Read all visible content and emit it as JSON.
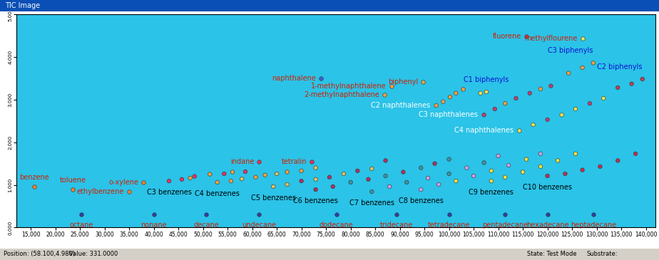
{
  "chart_data": {
    "type": "scatter",
    "title": "TIC Image",
    "annotations": [
      "Position: (58.100,4.980)",
      "Value: 331.0000",
      "State: Test Mode",
      "Substrate:"
    ],
    "xlim": [
      12100,
      142000
    ],
    "ylim": [
      0,
      5
    ],
    "xticks": [
      {
        "value": 15000,
        "label": "15,000"
      },
      {
        "value": 20000,
        "label": "20,000"
      },
      {
        "value": 25000,
        "label": "25,000"
      },
      {
        "value": 30000,
        "label": "30,000"
      },
      {
        "value": 35000,
        "label": "35,000"
      },
      {
        "value": 40000,
        "label": "40,000"
      },
      {
        "value": 45000,
        "label": "45,000"
      },
      {
        "value": 50000,
        "label": "50,000"
      },
      {
        "value": 55000,
        "label": "55,000"
      },
      {
        "value": 60000,
        "label": "60,000"
      },
      {
        "value": 65000,
        "label": "65,000"
      },
      {
        "value": 70000,
        "label": "70,000"
      },
      {
        "value": 75000,
        "label": "75,000"
      },
      {
        "value": 80000,
        "label": "80,000"
      },
      {
        "value": 85000,
        "label": "85,000"
      },
      {
        "value": 90000,
        "label": "90,000"
      },
      {
        "value": 95000,
        "label": "95,000"
      },
      {
        "value": 100000,
        "label": "100,000"
      },
      {
        "value": 105000,
        "label": "105,000"
      },
      {
        "value": 110000,
        "label": "110,000"
      },
      {
        "value": 115000,
        "label": "115,000"
      },
      {
        "value": 120000,
        "label": "120,000"
      },
      {
        "value": 125000,
        "label": "125,000"
      },
      {
        "value": 130000,
        "label": "130,000"
      },
      {
        "value": 135000,
        "label": "135,000"
      },
      {
        "value": 140000,
        "label": "140,000"
      }
    ],
    "yticks": [
      {
        "value": 0,
        "label": "0.000"
      },
      {
        "value": 1,
        "label": "1.000"
      },
      {
        "value": 2,
        "label": "2.000"
      },
      {
        "value": 3,
        "label": "3.000"
      },
      {
        "value": 4,
        "label": "4.000"
      },
      {
        "value": 5,
        "label": "5.000"
      }
    ],
    "series": [
      {
        "name": "benzene",
        "color": "#d02000",
        "x": [
          15700
        ],
        "values": [
          0.96
        ],
        "colors": [
          "#f08030"
        ]
      },
      {
        "name": "toluene",
        "color": "#d02000",
        "x": [
          23600
        ],
        "values": [
          0.89
        ],
        "colors": [
          "#f08030"
        ]
      },
      {
        "name": "ethylbenzene",
        "color": "#d02000",
        "x": [
          35000
        ],
        "values": [
          0.84
        ],
        "colors": [
          "#f08030"
        ]
      },
      {
        "name": "o-xylene",
        "color": "#d02000",
        "x": [
          37900
        ],
        "values": [
          1.06
        ],
        "colors": [
          "#f08030"
        ]
      },
      {
        "name": "indane",
        "color": "#d02000",
        "x": [
          61400
        ],
        "values": [
          1.55
        ],
        "colors": [
          "#e83060"
        ]
      },
      {
        "name": "tetralin",
        "color": "#d02000",
        "x": [
          72100
        ],
        "values": [
          1.55
        ],
        "colors": [
          "#e83060"
        ]
      },
      {
        "name": "naphthalene",
        "color": "#d02000",
        "x": [
          74000
        ],
        "values": [
          3.5
        ],
        "colors": [
          "#4060d0"
        ]
      },
      {
        "name": "1-methylnaphthalene",
        "color": "#d02000",
        "x": [
          88300
        ],
        "values": [
          3.32
        ],
        "colors": [
          "#f0a040"
        ]
      },
      {
        "name": "2-methylnaphthalene",
        "color": "#d02000",
        "x": [
          86900
        ],
        "values": [
          3.11
        ],
        "colors": [
          "#f0a040"
        ]
      },
      {
        "name": "biphenyl",
        "color": "#d02000",
        "x": [
          94700
        ],
        "values": [
          3.42
        ],
        "colors": [
          "#f0a040"
        ]
      },
      {
        "name": "fluorene",
        "color": "#d02000",
        "x": [
          115700
        ],
        "values": [
          4.49
        ],
        "colors": [
          "#c04050"
        ]
      },
      {
        "name": "methylflourene",
        "color": "#d02000",
        "x": [
          127100
        ],
        "values": [
          4.43
        ],
        "colors": [
          "#f0e050"
        ]
      },
      {
        "name": "octane",
        "color": "#d02000",
        "x": [
          25300
        ],
        "values": [
          0.3
        ],
        "colors": [
          "#3040a0"
        ]
      },
      {
        "name": "nonane",
        "color": "#d02000",
        "x": [
          40000
        ],
        "values": [
          0.3
        ],
        "colors": [
          "#3040a0"
        ]
      },
      {
        "name": "decane",
        "color": "#d02000",
        "x": [
          50700
        ],
        "values": [
          0.3
        ],
        "colors": [
          "#3040a0"
        ]
      },
      {
        "name": "undecane",
        "color": "#d02000",
        "x": [
          61400
        ],
        "values": [
          0.3
        ],
        "colors": [
          "#3040a0"
        ]
      },
      {
        "name": "dodecane",
        "color": "#d02000",
        "x": [
          77100
        ],
        "values": [
          0.3
        ],
        "colors": [
          "#3040a0"
        ]
      },
      {
        "name": "tridecane",
        "color": "#d02000",
        "x": [
          89300
        ],
        "values": [
          0.3
        ],
        "colors": [
          "#3040a0"
        ]
      },
      {
        "name": "tetradecane",
        "color": "#d02000",
        "x": [
          100000
        ],
        "values": [
          0.3
        ],
        "colors": [
          "#3040a0"
        ]
      },
      {
        "name": "pentadecane",
        "color": "#d02000",
        "x": [
          111400
        ],
        "values": [
          0.3
        ],
        "colors": [
          "#3040a0"
        ]
      },
      {
        "name": "hexadecane",
        "color": "#d02000",
        "x": [
          120000
        ],
        "values": [
          0.3
        ],
        "colors": [
          "#3040a0"
        ]
      },
      {
        "name": "heptadecane",
        "color": "#d02000",
        "x": [
          129300
        ],
        "values": [
          0.3
        ],
        "colors": [
          "#3040a0"
        ]
      },
      {
        "name": "C3 benzenes",
        "color": "#000000",
        "x": [
          43100,
          45700,
          47400,
          48300,
          51400,
          54300,
          56000,
          58600
        ],
        "values": [
          1.09,
          1.13,
          1.16,
          1.2,
          1.25,
          1.26,
          1.3,
          1.31
        ],
        "colors": [
          "#e83060",
          "#e83060",
          "#f0a040",
          "#e83060",
          "#f0a040",
          "#e83060",
          "#f0a040",
          "#e83060"
        ]
      },
      {
        "name": "C4 benzenes",
        "color": "#000000",
        "x": [
          52900,
          55700,
          57900,
          60700,
          62600,
          65000,
          67100,
          70000,
          72900
        ],
        "values": [
          1.06,
          1.09,
          1.14,
          1.18,
          1.23,
          1.26,
          1.3,
          1.33,
          1.4
        ],
        "colors": [
          "#f0a040",
          "#f0a040",
          "#e0c060",
          "#f0a040",
          "#f0a040",
          "#e0c060",
          "#f0a040",
          "#f0a040",
          "#e0c060"
        ]
      },
      {
        "name": "C5 benzenes",
        "color": "#000000",
        "x": [
          64300,
          67100,
          70000,
          72900,
          75700,
          78600,
          81400,
          84300,
          87100
        ],
        "values": [
          0.96,
          1.01,
          1.09,
          1.13,
          1.18,
          1.26,
          1.33,
          1.38,
          1.57
        ],
        "colors": [
          "#e0c060",
          "#e0c060",
          "#b03060",
          "#e0c060",
          "#b03060",
          "#e0c060",
          "#b03060",
          "#e0c060",
          "#b03060"
        ]
      },
      {
        "name": "C6 benzenes",
        "color": "#000000",
        "x": [
          72900,
          76400,
          80000,
          83600,
          87100,
          90700,
          94300,
          97100,
          100000
        ],
        "values": [
          0.89,
          0.96,
          1.06,
          1.13,
          1.21,
          1.3,
          1.4,
          1.5,
          1.6
        ],
        "colors": [
          "#b03060",
          "#b03060",
          "#4090a0",
          "#b03060",
          "#4090a0",
          "#b03060",
          "#4090a0",
          "#b03060",
          "#4090a0"
        ]
      },
      {
        "name": "C7 benzenes",
        "color": "#000000",
        "x": [
          84300,
          87900,
          91400,
          95700,
          100000,
          103600,
          107100,
          110000
        ],
        "values": [
          0.84,
          0.96,
          1.06,
          1.16,
          1.26,
          1.4,
          1.52,
          1.68
        ],
        "colors": [
          "#4090a0",
          "#d0a0e0",
          "#4090a0",
          "#d0a0e0",
          "#4090a0",
          "#d0a0e0",
          "#4090a0",
          "#d0a0e0"
        ]
      },
      {
        "name": "C8 benzenes",
        "color": "#000000",
        "x": [
          94300,
          97900,
          101400,
          105000,
          108600,
          112100,
          115700,
          118600
        ],
        "values": [
          0.89,
          1.01,
          1.09,
          1.21,
          1.33,
          1.46,
          1.6,
          1.73
        ],
        "colors": [
          "#d0a0e0",
          "#d0a0e0",
          "#f0e040",
          "#d0a0e0",
          "#f0e040",
          "#d0a0e0",
          "#f0e040",
          "#d0a0e0"
        ]
      },
      {
        "name": "C9 benzenes",
        "color": "#000000",
        "x": [
          108600,
          111400,
          115000,
          118600,
          122100,
          125700
        ],
        "values": [
          1.09,
          1.18,
          1.3,
          1.43,
          1.57,
          1.73
        ],
        "colors": [
          "#f0e040",
          "#f0e040",
          "#f0e040",
          "#f0e040",
          "#f0e040",
          "#f0e040"
        ]
      },
      {
        "name": "C10 benzenes",
        "color": "#000000",
        "x": [
          120000,
          123600,
          127100,
          130700,
          134300,
          137900
        ],
        "values": [
          1.21,
          1.26,
          1.35,
          1.43,
          1.57,
          1.73
        ],
        "colors": [
          "#c03050",
          "#c03050",
          "#c03050",
          "#c03050",
          "#c03050",
          "#c03050"
        ]
      },
      {
        "name": "C2 naphthalenes",
        "color": "#ffffff",
        "x": [
          97400,
          98800,
          100200,
          101400,
          102900
        ],
        "values": [
          2.86,
          2.95,
          3.06,
          3.15,
          3.24
        ],
        "colors": [
          "#f0a040",
          "#f0a040",
          "#f0a040",
          "#f0a040",
          "#f0a040"
        ]
      },
      {
        "name": "C3 naphthalenes",
        "color": "#ffffff",
        "x": [
          107100,
          109300,
          111400,
          113600,
          116400,
          118600,
          120700
        ],
        "values": [
          2.64,
          2.78,
          2.91,
          3.03,
          3.15,
          3.25,
          3.32
        ],
        "colors": [
          "#c04070",
          "#c04070",
          "#f0a040",
          "#c04070",
          "#c04070",
          "#f0a040",
          "#c04070"
        ]
      },
      {
        "name": "C4 naphthalenes",
        "color": "#ffffff",
        "x": [
          114300,
          117100,
          120000,
          122900,
          125700,
          128600,
          131400
        ],
        "values": [
          2.27,
          2.41,
          2.53,
          2.64,
          2.78,
          2.91,
          3.03
        ],
        "colors": [
          "#f0e050",
          "#f0e050",
          "#c04070",
          "#f0e050",
          "#f0e050",
          "#c04070",
          "#f0e050"
        ]
      },
      {
        "name": "C1 biphenyls",
        "color": "#1010d0",
        "x": [
          106400,
          107600
        ],
        "values": [
          3.15,
          3.18
        ],
        "colors": [
          "#f0e050",
          "#f0e050"
        ]
      },
      {
        "name": "C2 biphenyls",
        "color": "#1010d0",
        "x": [
          134300,
          137100,
          139300
        ],
        "values": [
          3.28,
          3.37,
          3.48
        ],
        "colors": [
          "#c04050",
          "#c04050",
          "#c04050"
        ]
      },
      {
        "name": "C3 biphenyls",
        "color": "#1010d0",
        "x": [
          124300,
          127100,
          129300
        ],
        "values": [
          3.62,
          3.75,
          3.86
        ],
        "colors": [
          "#f0a040",
          "#f0a040",
          "#f0a040"
        ]
      }
    ]
  }
}
